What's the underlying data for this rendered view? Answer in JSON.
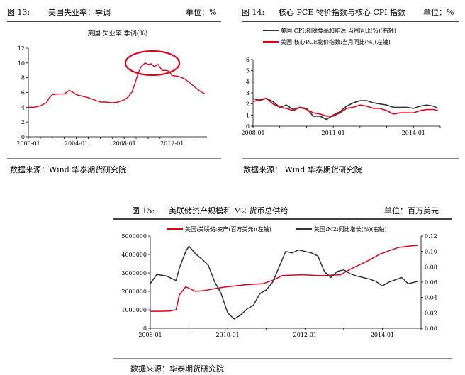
{
  "fig13": {
    "number": "图 13:",
    "title": "美国失业率：季调",
    "unit": "单位：%",
    "source": "数据来源：Wind  华泰期货研究院"
  },
  "fig14": {
    "number": "图 14:",
    "title": "核心 PCE 物价指数与核心 CPI 指数",
    "unit": "单位：%",
    "source": "数据来源：  Wind  华泰期货研究院"
  },
  "fig15": {
    "number": "图 15:",
    "title": "美联储资产规模和 M2 货币总供给",
    "unit": "单位：百万美元",
    "source": "数据来源：华泰期货研究院"
  },
  "chart_data": [
    {
      "type": "line",
      "title": "美国:失业率:季调(%)",
      "ylim": [
        0,
        12
      ],
      "yticks": [
        0,
        2,
        4,
        6,
        8,
        10,
        12
      ],
      "xlim": [
        "2000-01",
        "2014-12"
      ],
      "xticks": [
        "2000-01",
        "2004-01",
        "2008-01",
        "2012-01"
      ],
      "series": [
        {
          "name": "美国:失业率:季调(%)",
          "color": "#e3001b",
          "points": [
            [
              "2000-01",
              4.0
            ],
            [
              "2000-07",
              4.0
            ],
            [
              "2001-01",
              4.2
            ],
            [
              "2001-07",
              4.6
            ],
            [
              "2001-10",
              5.3
            ],
            [
              "2002-01",
              5.7
            ],
            [
              "2002-07",
              5.8
            ],
            [
              "2003-01",
              5.8
            ],
            [
              "2003-06",
              6.3
            ],
            [
              "2003-10",
              6.0
            ],
            [
              "2004-01",
              5.7
            ],
            [
              "2004-07",
              5.5
            ],
            [
              "2005-01",
              5.3
            ],
            [
              "2005-07",
              5.0
            ],
            [
              "2006-01",
              4.7
            ],
            [
              "2006-07",
              4.7
            ],
            [
              "2007-01",
              4.6
            ],
            [
              "2007-07",
              4.7
            ],
            [
              "2008-01",
              5.0
            ],
            [
              "2008-05",
              5.4
            ],
            [
              "2008-09",
              6.1
            ],
            [
              "2008-12",
              7.3
            ],
            [
              "2009-03",
              8.6
            ],
            [
              "2009-06",
              9.5
            ],
            [
              "2009-10",
              10.0
            ],
            [
              "2010-01",
              9.8
            ],
            [
              "2010-04",
              9.9
            ],
            [
              "2010-07",
              9.5
            ],
            [
              "2010-11",
              9.8
            ],
            [
              "2011-03",
              9.0
            ],
            [
              "2011-07",
              9.0
            ],
            [
              "2011-10",
              8.9
            ],
            [
              "2012-01",
              8.3
            ],
            [
              "2012-07",
              8.2
            ],
            [
              "2013-01",
              7.9
            ],
            [
              "2013-07",
              7.3
            ],
            [
              "2014-01",
              6.6
            ],
            [
              "2014-06",
              6.1
            ],
            [
              "2014-10",
              5.8
            ]
          ]
        }
      ]
    },
    {
      "type": "line",
      "ylim": [
        0,
        6
      ],
      "yticks": [
        0,
        1,
        2,
        3,
        4,
        5,
        6
      ],
      "xlim": [
        "2008-01",
        "2015-01"
      ],
      "xticks": [
        "2008-01",
        "2011-01",
        "2014-01"
      ],
      "legend": "top",
      "series": [
        {
          "name": "美国:CPI:剔除食品和能源:当月同比(%)(右轴)",
          "color": "#333333",
          "points": [
            [
              "2008-01",
              2.5
            ],
            [
              "2008-04",
              2.3
            ],
            [
              "2008-07",
              2.5
            ],
            [
              "2008-10",
              2.2
            ],
            [
              "2009-01",
              1.7
            ],
            [
              "2009-04",
              1.9
            ],
            [
              "2009-07",
              1.5
            ],
            [
              "2009-10",
              1.7
            ],
            [
              "2010-01",
              1.6
            ],
            [
              "2010-04",
              0.9
            ],
            [
              "2010-07",
              0.9
            ],
            [
              "2010-10",
              0.6
            ],
            [
              "2011-01",
              1.0
            ],
            [
              "2011-04",
              1.3
            ],
            [
              "2011-07",
              1.8
            ],
            [
              "2011-10",
              2.1
            ],
            [
              "2012-01",
              2.3
            ],
            [
              "2012-04",
              2.3
            ],
            [
              "2012-07",
              2.1
            ],
            [
              "2012-10",
              2.0
            ],
            [
              "2013-01",
              1.9
            ],
            [
              "2013-04",
              1.7
            ],
            [
              "2013-07",
              1.7
            ],
            [
              "2013-10",
              1.7
            ],
            [
              "2014-01",
              1.6
            ],
            [
              "2014-04",
              1.8
            ],
            [
              "2014-07",
              1.9
            ],
            [
              "2014-10",
              1.8
            ],
            [
              "2014-12",
              1.6
            ]
          ]
        },
        {
          "name": "美国:核心PCE物价指数:当月同比(%)(左轴)",
          "color": "#e3001b",
          "points": [
            [
              "2008-01",
              2.2
            ],
            [
              "2008-04",
              2.4
            ],
            [
              "2008-07",
              2.5
            ],
            [
              "2008-10",
              2.0
            ],
            [
              "2009-01",
              1.7
            ],
            [
              "2009-04",
              1.6
            ],
            [
              "2009-07",
              1.4
            ],
            [
              "2009-10",
              1.7
            ],
            [
              "2010-01",
              1.5
            ],
            [
              "2010-04",
              1.2
            ],
            [
              "2010-07",
              1.1
            ],
            [
              "2010-10",
              0.9
            ],
            [
              "2011-01",
              0.9
            ],
            [
              "2011-04",
              1.2
            ],
            [
              "2011-07",
              1.6
            ],
            [
              "2011-10",
              1.7
            ],
            [
              "2012-01",
              1.9
            ],
            [
              "2012-04",
              1.8
            ],
            [
              "2012-07",
              1.6
            ],
            [
              "2012-10",
              1.6
            ],
            [
              "2013-01",
              1.4
            ],
            [
              "2013-04",
              1.1
            ],
            [
              "2013-07",
              1.2
            ],
            [
              "2013-10",
              1.2
            ],
            [
              "2014-01",
              1.2
            ],
            [
              "2014-04",
              1.4
            ],
            [
              "2014-07",
              1.5
            ],
            [
              "2014-10",
              1.5
            ],
            [
              "2014-12",
              1.4
            ]
          ]
        }
      ]
    },
    {
      "type": "line",
      "ylim": [
        0,
        5000000
      ],
      "yticks": [
        0,
        1000000,
        2000000,
        3000000,
        4000000,
        5000000
      ],
      "ylim_right": [
        0,
        0.12
      ],
      "yticks_right": [
        0.0,
        0.02,
        0.04,
        0.06,
        0.08,
        0.1,
        0.12
      ],
      "xlim": [
        "2008-01",
        "2015-01"
      ],
      "xticks": [
        "2008-01",
        "2010-01",
        "2012-01",
        "2014-01"
      ],
      "legend": "top",
      "series": [
        {
          "name": "美国:美联储:资产(百万美元)(左轴)",
          "color": "#e3001b",
          "axis": "left",
          "points": [
            [
              "2008-01",
              920000
            ],
            [
              "2008-04",
              920000
            ],
            [
              "2008-07",
              930000
            ],
            [
              "2008-09",
              1000000
            ],
            [
              "2008-10",
              1800000
            ],
            [
              "2008-12",
              2250000
            ],
            [
              "2009-03",
              2000000
            ],
            [
              "2009-06",
              2050000
            ],
            [
              "2009-09",
              2150000
            ],
            [
              "2009-12",
              2230000
            ],
            [
              "2010-06",
              2350000
            ],
            [
              "2010-12",
              2420000
            ],
            [
              "2011-03",
              2600000
            ],
            [
              "2011-06",
              2860000
            ],
            [
              "2011-12",
              2900000
            ],
            [
              "2012-06",
              2850000
            ],
            [
              "2012-12",
              2900000
            ],
            [
              "2013-03",
              3200000
            ],
            [
              "2013-06",
              3450000
            ],
            [
              "2013-09",
              3700000
            ],
            [
              "2013-12",
              4000000
            ],
            [
              "2014-03",
              4200000
            ],
            [
              "2014-06",
              4380000
            ],
            [
              "2014-09",
              4450000
            ],
            [
              "2014-12",
              4500000
            ]
          ]
        },
        {
          "name": "美国:M2:同比增长(%)(右轴)",
          "color": "#333333",
          "axis": "right",
          "points": [
            [
              "2008-01",
              0.058
            ],
            [
              "2008-03",
              0.07
            ],
            [
              "2008-06",
              0.068
            ],
            [
              "2008-09",
              0.062
            ],
            [
              "2008-10",
              0.078
            ],
            [
              "2008-12",
              0.1
            ],
            [
              "2009-01",
              0.107
            ],
            [
              "2009-03",
              0.097
            ],
            [
              "2009-05",
              0.09
            ],
            [
              "2009-07",
              0.082
            ],
            [
              "2009-09",
              0.06
            ],
            [
              "2009-11",
              0.045
            ],
            [
              "2010-01",
              0.02
            ],
            [
              "2010-03",
              0.012
            ],
            [
              "2010-05",
              0.017
            ],
            [
              "2010-07",
              0.025
            ],
            [
              "2010-09",
              0.03
            ],
            [
              "2010-11",
              0.045
            ],
            [
              "2011-01",
              0.05
            ],
            [
              "2011-03",
              0.06
            ],
            [
              "2011-05",
              0.08
            ],
            [
              "2011-07",
              0.1
            ],
            [
              "2011-09",
              0.098
            ],
            [
              "2011-11",
              0.102
            ],
            [
              "2012-01",
              0.1
            ],
            [
              "2012-03",
              0.098
            ],
            [
              "2012-05",
              0.094
            ],
            [
              "2012-07",
              0.074
            ],
            [
              "2012-09",
              0.066
            ],
            [
              "2012-11",
              0.074
            ],
            [
              "2013-01",
              0.076
            ],
            [
              "2013-03",
              0.071
            ],
            [
              "2013-05",
              0.068
            ],
            [
              "2013-07",
              0.066
            ],
            [
              "2013-09",
              0.064
            ],
            [
              "2013-11",
              0.061
            ],
            [
              "2014-01",
              0.055
            ],
            [
              "2014-03",
              0.06
            ],
            [
              "2014-05",
              0.063
            ],
            [
              "2014-07",
              0.066
            ],
            [
              "2014-09",
              0.058
            ],
            [
              "2014-11",
              0.06
            ],
            [
              "2014-12",
              0.061
            ]
          ]
        }
      ]
    }
  ]
}
